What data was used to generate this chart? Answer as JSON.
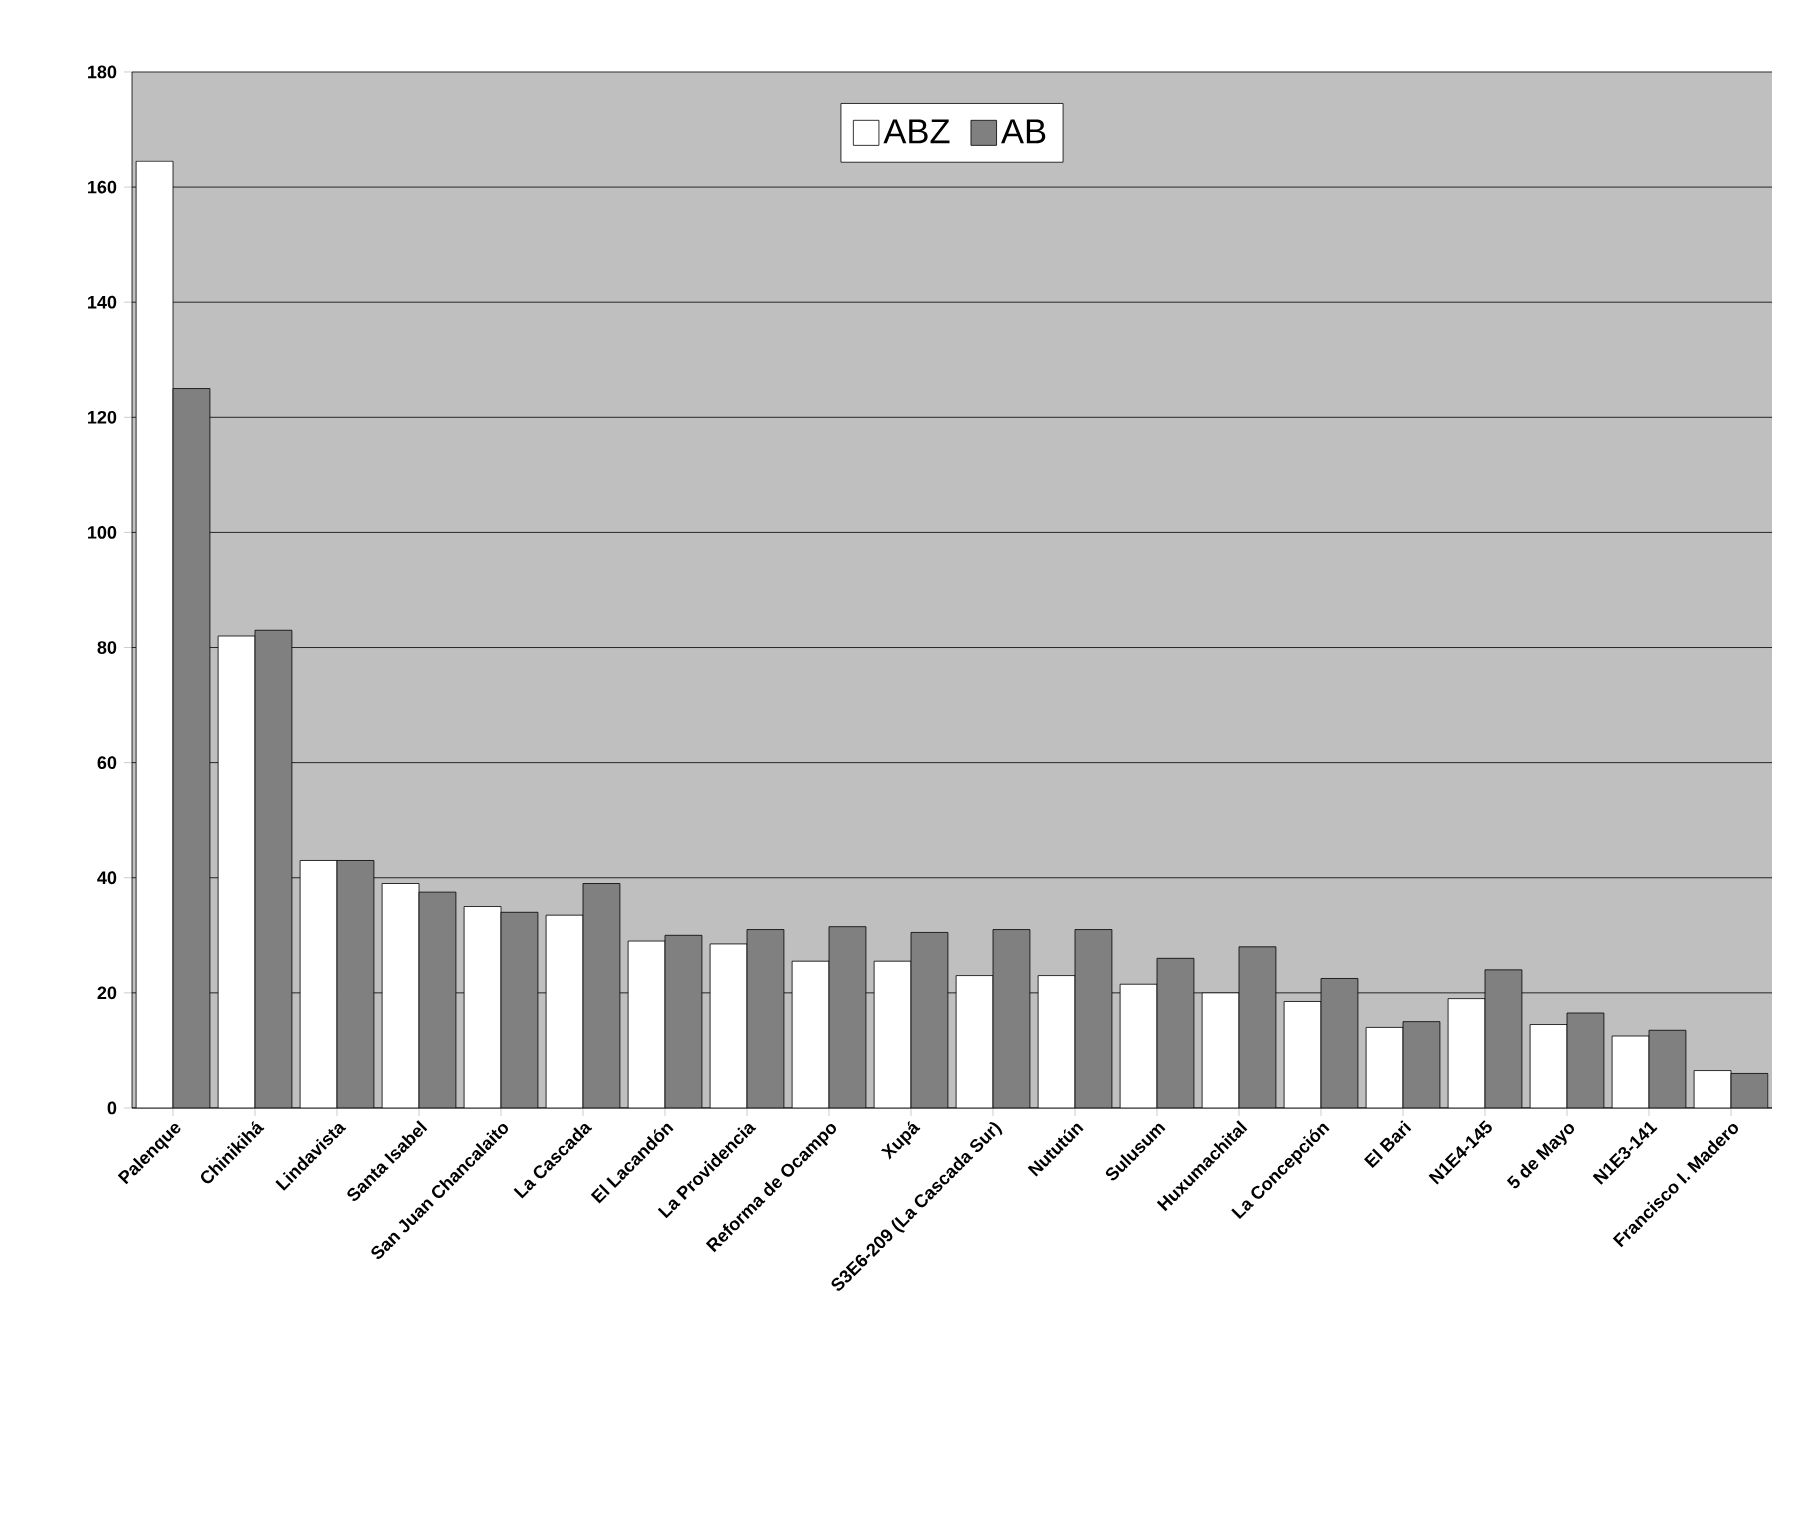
{
  "chart_data": {
    "type": "bar",
    "categories": [
      "Palenque",
      "Chinikihá",
      "Lindavista",
      "Santa Isabel",
      "San Juan Chancalaito",
      "La Cascada",
      "El Lacandón",
      "La Providencia",
      "Reforma de Ocampo",
      "Xupá",
      "S3E6-209 (La Cascada Sur)",
      "Nututún",
      "Sulusum",
      "Huxumachital",
      "La Concepción",
      "El Bari",
      "N1E4-145",
      "5 de Mayo",
      "N1E3-141",
      "Francisco I. Madero"
    ],
    "series": [
      {
        "name": "ABZ",
        "color": "#ffffff",
        "values": [
          164.5,
          82,
          43,
          39,
          35,
          33.5,
          29,
          28.5,
          25.5,
          25.5,
          23,
          23,
          21.5,
          20,
          18.5,
          14,
          19,
          14.5,
          12.5,
          6.5
        ]
      },
      {
        "name": "AB",
        "color": "#808080",
        "values": [
          125,
          83,
          43,
          37.5,
          34,
          39,
          30,
          31,
          31.5,
          30.5,
          31,
          31,
          26,
          28,
          22.5,
          15,
          24,
          16.5,
          13.5,
          6
        ]
      }
    ],
    "ylim": [
      0,
      180
    ],
    "yticks": [
      0,
      20,
      40,
      60,
      80,
      100,
      120,
      140,
      160,
      180
    ],
    "grid": "y",
    "legend": "top"
  }
}
